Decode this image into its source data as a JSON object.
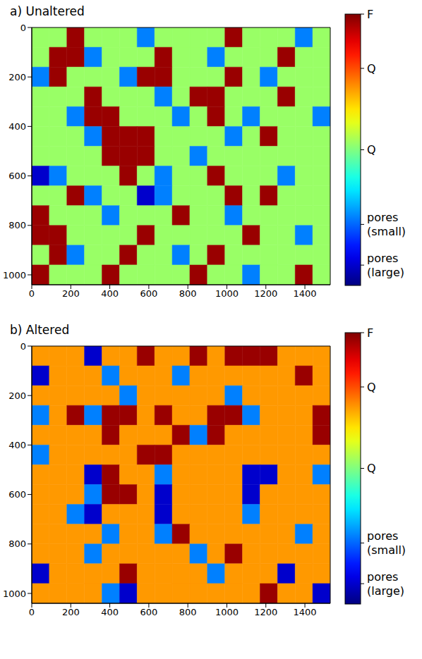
{
  "chart_data": [
    {
      "type": "heatmap",
      "title": "a) Unaltered",
      "xlim": [
        0,
        1530
      ],
      "xticks": [
        0,
        200,
        400,
        600,
        800,
        1000,
        1200,
        1400
      ],
      "ylim": [
        0,
        1040
      ],
      "yticks": [
        0,
        200,
        400,
        600,
        800,
        1000
      ],
      "cells": [
        [
          2.1,
          2.1,
          3.9,
          2.1,
          2.1,
          2.1,
          1.0,
          2.1,
          2.1,
          2.1,
          2.1,
          3.9,
          2.1,
          2.1,
          2.1,
          1.0,
          2.1
        ],
        [
          2.1,
          3.9,
          3.9,
          1.0,
          2.1,
          2.1,
          2.1,
          3.9,
          2.1,
          2.1,
          1.0,
          2.1,
          2.1,
          2.1,
          3.9,
          2.1,
          2.1
        ],
        [
          1.0,
          3.9,
          2.1,
          2.1,
          2.1,
          1.0,
          3.9,
          3.9,
          2.1,
          2.1,
          2.1,
          3.9,
          2.1,
          1.0,
          2.1,
          2.1,
          2.1
        ],
        [
          2.1,
          2.1,
          2.1,
          3.9,
          2.1,
          2.1,
          2.1,
          1.0,
          2.1,
          3.9,
          3.9,
          2.1,
          2.1,
          2.1,
          3.9,
          2.1,
          2.1
        ],
        [
          2.1,
          2.1,
          1.0,
          3.9,
          3.9,
          2.1,
          2.1,
          2.1,
          1.0,
          2.1,
          3.9,
          2.1,
          1.0,
          2.1,
          2.1,
          2.1,
          1.0
        ],
        [
          2.1,
          2.1,
          2.1,
          1.0,
          3.9,
          3.9,
          3.9,
          2.1,
          2.1,
          2.1,
          2.1,
          1.0,
          2.1,
          3.9,
          2.1,
          2.1,
          2.1
        ],
        [
          2.1,
          2.1,
          2.1,
          2.1,
          3.9,
          3.9,
          3.9,
          2.1,
          2.1,
          1.0,
          2.1,
          2.1,
          2.1,
          2.1,
          2.1,
          2.1,
          2.1
        ],
        [
          0.3,
          1.0,
          2.1,
          2.1,
          2.1,
          3.9,
          2.1,
          1.0,
          2.1,
          2.1,
          3.9,
          2.1,
          2.1,
          2.1,
          1.0,
          2.1,
          2.1
        ],
        [
          2.1,
          2.1,
          3.9,
          1.0,
          2.1,
          2.1,
          0.3,
          1.0,
          2.1,
          2.1,
          2.1,
          3.9,
          2.1,
          3.9,
          2.1,
          2.1,
          2.1
        ],
        [
          3.9,
          2.1,
          2.1,
          2.1,
          1.0,
          2.1,
          2.1,
          2.1,
          3.9,
          2.1,
          2.1,
          1.0,
          2.1,
          2.1,
          2.1,
          2.1,
          2.1
        ],
        [
          3.9,
          3.9,
          2.1,
          2.1,
          2.1,
          2.1,
          3.9,
          2.1,
          2.1,
          2.1,
          2.1,
          2.1,
          3.9,
          2.1,
          2.1,
          1.0,
          2.1
        ],
        [
          2.1,
          3.9,
          1.0,
          2.1,
          2.1,
          3.9,
          2.1,
          2.1,
          1.0,
          2.1,
          3.9,
          2.1,
          2.1,
          2.1,
          2.1,
          2.1,
          2.1
        ],
        [
          3.9,
          2.1,
          2.1,
          2.1,
          3.9,
          2.1,
          2.1,
          2.1,
          2.1,
          3.9,
          2.1,
          2.1,
          1.0,
          2.1,
          2.1,
          3.9,
          2.1
        ]
      ],
      "colorbar": {
        "range": [
          0,
          4
        ],
        "ticks": [
          {
            "value": 4,
            "label": "F"
          },
          {
            "value": 3.2,
            "label": "Q"
          },
          {
            "value": 2.0,
            "label": "Q"
          },
          {
            "value": 0.9,
            "label": "pores (small)"
          },
          {
            "value": 0.3,
            "label": "pores (large)"
          }
        ]
      }
    },
    {
      "type": "heatmap",
      "title": "b) Altered",
      "xlim": [
        0,
        1530
      ],
      "xticks": [
        0,
        200,
        400,
        600,
        800,
        1000,
        1200,
        1400
      ],
      "ylim": [
        0,
        1040
      ],
      "yticks": [
        0,
        200,
        400,
        600,
        800,
        1000
      ],
      "cells": [
        [
          2.9,
          2.9,
          2.9,
          0.3,
          2.9,
          2.9,
          3.9,
          2.9,
          2.9,
          3.9,
          2.9,
          3.9,
          3.9,
          3.9,
          2.9,
          2.9,
          2.9
        ],
        [
          0.3,
          2.9,
          2.9,
          2.9,
          1.0,
          2.9,
          2.9,
          2.9,
          1.0,
          2.9,
          2.9,
          2.9,
          2.9,
          2.9,
          2.9,
          3.9,
          2.9
        ],
        [
          2.9,
          2.9,
          2.9,
          2.9,
          2.9,
          1.0,
          2.9,
          2.9,
          2.9,
          2.9,
          2.9,
          1.0,
          2.9,
          2.9,
          2.9,
          2.9,
          2.9
        ],
        [
          1.0,
          2.9,
          3.9,
          1.0,
          3.9,
          3.9,
          2.9,
          3.9,
          2.9,
          2.9,
          3.9,
          3.9,
          1.0,
          2.9,
          2.9,
          2.9,
          3.9
        ],
        [
          2.9,
          2.9,
          2.9,
          2.9,
          3.9,
          2.9,
          2.9,
          2.9,
          3.9,
          1.0,
          3.9,
          2.9,
          2.9,
          2.9,
          2.9,
          2.9,
          3.9
        ],
        [
          1.0,
          2.9,
          2.9,
          2.9,
          2.9,
          2.9,
          3.9,
          3.9,
          2.9,
          2.9,
          2.9,
          2.9,
          2.9,
          2.9,
          2.9,
          2.9,
          2.9
        ],
        [
          2.9,
          2.9,
          2.9,
          0.3,
          3.9,
          2.9,
          2.9,
          1.0,
          2.9,
          2.9,
          2.9,
          2.9,
          0.3,
          0.3,
          2.9,
          2.9,
          1.0
        ],
        [
          2.9,
          2.9,
          2.9,
          1.0,
          3.9,
          3.9,
          2.9,
          0.3,
          2.9,
          2.9,
          2.9,
          2.9,
          0.3,
          2.9,
          2.9,
          2.9,
          2.9
        ],
        [
          2.9,
          2.9,
          1.0,
          0.3,
          2.9,
          2.9,
          2.9,
          0.3,
          2.9,
          2.9,
          2.9,
          2.9,
          1.0,
          2.9,
          2.9,
          2.9,
          2.9
        ],
        [
          2.9,
          2.9,
          2.9,
          2.9,
          1.0,
          2.9,
          2.9,
          1.0,
          3.9,
          2.9,
          2.9,
          2.9,
          2.9,
          2.9,
          2.9,
          1.0,
          2.9
        ],
        [
          2.9,
          2.9,
          2.9,
          1.0,
          2.9,
          2.9,
          2.9,
          2.9,
          2.9,
          1.0,
          2.9,
          3.9,
          2.9,
          2.9,
          2.9,
          2.9,
          2.9
        ],
        [
          0.3,
          2.9,
          2.9,
          2.9,
          2.9,
          3.9,
          2.9,
          2.9,
          2.9,
          2.9,
          1.0,
          2.9,
          2.9,
          2.9,
          0.3,
          2.9,
          2.9
        ],
        [
          2.9,
          2.9,
          2.9,
          2.9,
          1.0,
          0.3,
          2.9,
          2.9,
          2.9,
          2.9,
          2.9,
          2.9,
          2.9,
          3.9,
          2.9,
          2.9,
          0.3
        ]
      ],
      "colorbar": {
        "range": [
          0,
          4
        ],
        "ticks": [
          {
            "value": 4,
            "label": "F"
          },
          {
            "value": 3.2,
            "label": "Q"
          },
          {
            "value": 2.0,
            "label": "Q"
          },
          {
            "value": 0.9,
            "label": "pores (small)"
          },
          {
            "value": 0.3,
            "label": "pores (large)"
          }
        ]
      }
    }
  ]
}
